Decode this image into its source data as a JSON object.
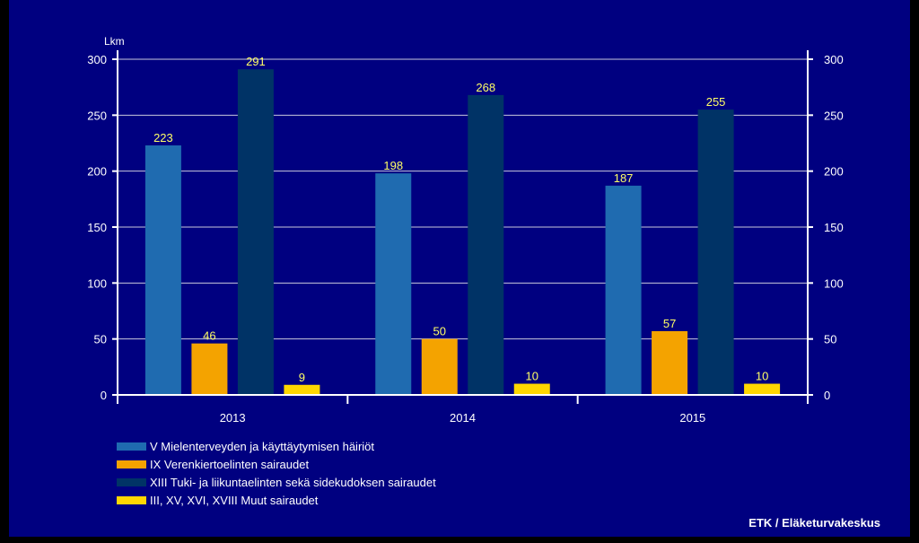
{
  "chart_data": {
    "type": "bar",
    "title": "",
    "ylabel": "Lkm",
    "xlabel": "",
    "ylim": [
      0,
      300
    ],
    "yticks": [
      0,
      50,
      100,
      150,
      200,
      250,
      300
    ],
    "ytick_labels": [
      "0",
      "50",
      "100",
      "150",
      "200",
      "250",
      "300"
    ],
    "secondary_y_axis": true,
    "grid": "horizontal",
    "legend_position": "bottom-left",
    "categories": [
      "2013",
      "2014",
      "2015"
    ],
    "series": [
      {
        "name": "V Mielenterveyden ja käyttäytymisen häiriöt",
        "color": "#1f6bb0",
        "values": [
          223,
          198,
          187
        ]
      },
      {
        "name": "IX Verenkiertoelinten sairaudet",
        "color": "#f4a300",
        "values": [
          46,
          50,
          57
        ]
      },
      {
        "name": "XIII Tuki- ja liikuntaelinten sekä sidekudoksen sairaudet",
        "color": "#003366",
        "values": [
          291,
          268,
          255
        ]
      },
      {
        "name": "III, XV, XVI, XVIII Muut sairaudet",
        "color": "#ffd700",
        "values": [
          9,
          10,
          10
        ]
      }
    ],
    "data_labels": [
      [
        "223",
        "198",
        "187"
      ],
      [
        "46",
        "50",
        "57"
      ],
      [
        "291",
        "268",
        "255"
      ],
      [
        "9",
        "10",
        "10"
      ]
    ],
    "data_label_color": "#ffff66",
    "background_color": "#000080",
    "source": "ETK / Eläketurvakeskus"
  }
}
